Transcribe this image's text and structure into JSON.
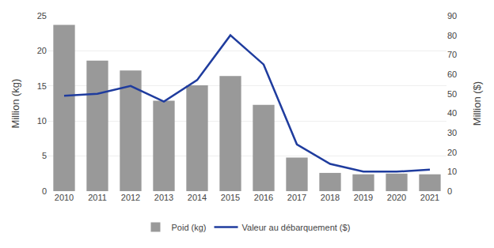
{
  "chart_data": {
    "type": "bar",
    "categories": [
      "2010",
      "2011",
      "2012",
      "2013",
      "2014",
      "2015",
      "2016",
      "2017",
      "2018",
      "2019",
      "2020",
      "2021"
    ],
    "series": [
      {
        "name": "Poid (kg)",
        "type": "bar",
        "color": "#999999",
        "values": [
          23.7,
          18.6,
          17.2,
          12.9,
          15.1,
          16.4,
          12.3,
          4.8,
          2.6,
          2.4,
          2.5,
          2.4
        ]
      },
      {
        "name": "Valeur au débarquement ($)",
        "type": "line",
        "color": "#1f3c9e",
        "axis": "y2",
        "values": [
          49,
          50,
          54,
          46,
          57,
          80,
          65,
          24,
          14,
          10,
          10,
          11
        ]
      }
    ],
    "ylabel": "Million (kg)",
    "y2label": "Million ($)",
    "ylim": [
      0,
      25
    ],
    "yticks": [
      0,
      5,
      10,
      15,
      20,
      25
    ],
    "y2lim": [
      0,
      90
    ],
    "y2ticks": [
      0,
      10,
      20,
      30,
      40,
      50,
      60,
      70,
      80,
      90
    ],
    "grid": true,
    "legend": "bottom"
  }
}
